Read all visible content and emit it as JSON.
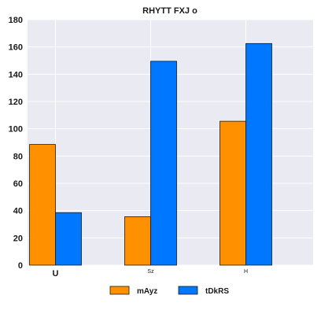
{
  "chart_data": {
    "type": "bar",
    "title": "RHYTT FXJ o",
    "xlabel": "",
    "ylabel": "",
    "categories": [
      "U",
      "Sz",
      "H"
    ],
    "series": [
      {
        "name": "mAyz",
        "values": [
          88.5,
          35.5,
          105.5
        ],
        "color": "#ff9100"
      },
      {
        "name": "tDkRS",
        "values": [
          38.5,
          149.5,
          162.5
        ],
        "color": "#0077ff"
      }
    ],
    "ylim": [
      0,
      180
    ],
    "yticks": [
      0,
      20,
      40,
      60,
      80,
      100,
      120,
      140,
      160,
      180
    ],
    "grid": true,
    "legend_position": "bottom-center",
    "background_color": "#e9eaf2"
  }
}
